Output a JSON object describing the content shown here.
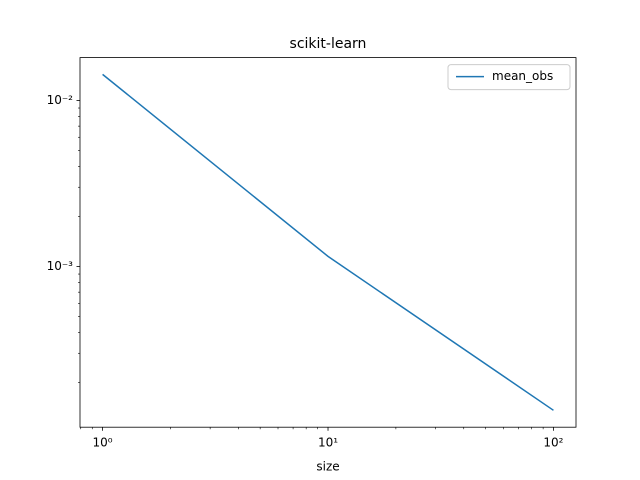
{
  "chart_data": {
    "type": "line",
    "title": "scikit-learn",
    "xlabel": "size",
    "x": [
      1,
      10,
      100
    ],
    "series": [
      {
        "name": "mean_obs",
        "color": "#1f77b4",
        "values": [
          0.01435,
          0.00115,
          0.000136
        ]
      }
    ],
    "xscale": "log",
    "yscale": "log",
    "xlim": [
      0.794,
      125.9
    ],
    "ylim": [
      0.0001076,
      0.01811
    ],
    "xticks": [
      {
        "value": 1,
        "label": "10⁰"
      },
      {
        "value": 10,
        "label": "10¹"
      },
      {
        "value": 100,
        "label": "10²"
      }
    ],
    "yticks": [
      {
        "value": 0.001,
        "label": "10⁻³"
      },
      {
        "value": 0.01,
        "label": "10⁻²"
      }
    ],
    "xminorticks": [
      0.8,
      0.9,
      2,
      3,
      4,
      5,
      6,
      7,
      8,
      9,
      20,
      30,
      40,
      50,
      60,
      70,
      80,
      90
    ],
    "yminorticks": [
      0.0002,
      0.0003,
      0.0004,
      0.0005,
      0.0006,
      0.0007,
      0.0008,
      0.0009,
      0.002,
      0.003,
      0.004,
      0.005,
      0.006,
      0.007,
      0.008,
      0.009
    ],
    "legend": "upper right",
    "grid": false
  }
}
